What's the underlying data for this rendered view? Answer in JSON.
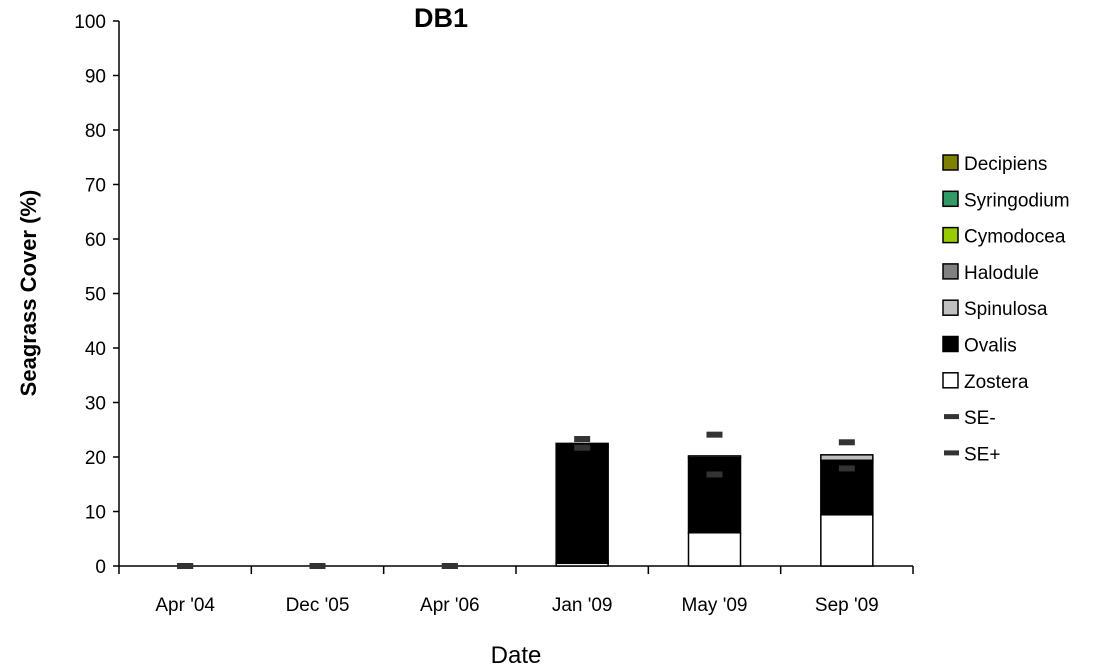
{
  "chart_data": {
    "type": "bar",
    "stacked": true,
    "title": "DB1",
    "xlabel": "Date",
    "ylabel": "Seagrass Cover (%)",
    "ylim": [
      0,
      100
    ],
    "yticks": [
      0,
      10,
      20,
      30,
      40,
      50,
      60,
      70,
      80,
      90,
      100
    ],
    "grid": false,
    "legend_position": "right",
    "categories": [
      "Apr '04",
      "Dec '05",
      "Apr '06",
      "Jan '09",
      "May '09",
      "Sep '09"
    ],
    "series": [
      {
        "name": "Decipiens",
        "color": "#808000",
        "values": [
          0,
          0,
          0,
          0,
          0,
          0
        ]
      },
      {
        "name": "Syringodium",
        "color": "#339966",
        "values": [
          0,
          0,
          0,
          0,
          0,
          0
        ]
      },
      {
        "name": "Cymodocea",
        "color": "#99CC00",
        "values": [
          0,
          0,
          0,
          0,
          0,
          0
        ]
      },
      {
        "name": "Halodule",
        "color": "#808080",
        "values": [
          0,
          0,
          0,
          0,
          0,
          0
        ]
      },
      {
        "name": "Spinulosa",
        "color": "#C0C0C0",
        "values": [
          0,
          0,
          0,
          0,
          0.3,
          1.0
        ]
      },
      {
        "name": "Ovalis",
        "color": "#000000",
        "values": [
          0,
          0,
          0,
          22.0,
          13.8,
          10.0
        ]
      },
      {
        "name": "Zostera",
        "color": "#FFFFFF",
        "values": [
          0,
          0,
          0,
          0.5,
          6.1,
          9.4
        ]
      }
    ],
    "error_markers": [
      {
        "name": "SE-",
        "color": "#333333",
        "values": [
          0,
          0,
          0,
          21.7,
          16.8,
          17.9
        ]
      },
      {
        "name": "SE+",
        "color": "#333333",
        "values": [
          0,
          0,
          0,
          23.3,
          24.1,
          22.7
        ]
      }
    ]
  }
}
